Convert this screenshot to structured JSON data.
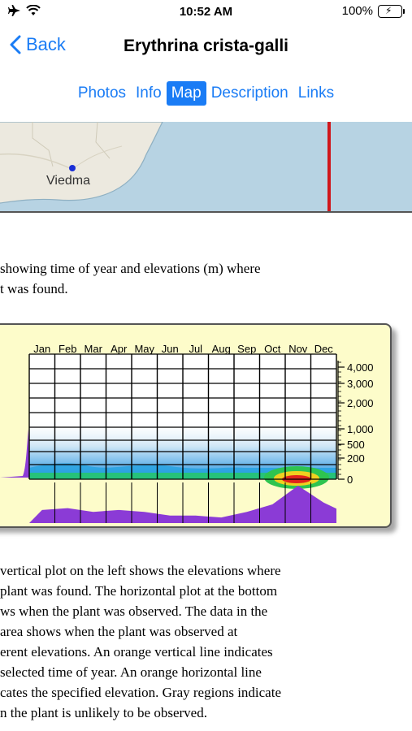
{
  "status": {
    "time": "10:52 AM",
    "battery": "100%"
  },
  "nav": {
    "back_label": "Back",
    "title": "Erythrina crista-galli"
  },
  "tabs": [
    {
      "label": "Photos",
      "active": false
    },
    {
      "label": "Info",
      "active": false
    },
    {
      "label": "Map",
      "active": true
    },
    {
      "label": "Description",
      "active": false
    },
    {
      "label": "Links",
      "active": false
    }
  ],
  "map": {
    "place_label": "Viedma"
  },
  "intro_lines": [
    "showing time of year and elevations (m) where",
    "t was found."
  ],
  "chart_data": {
    "type": "heatmap",
    "months": [
      "Jan",
      "Feb",
      "Mar",
      "Apr",
      "May",
      "Jun",
      "Jul",
      "Aug",
      "Sep",
      "Oct",
      "Nov",
      "Dec"
    ],
    "elevation_ticks": [
      "4,000",
      "3,000",
      "2,000",
      "1,000",
      "500",
      "200",
      "0"
    ],
    "monthly_observations_relative": [
      0.35,
      0.4,
      0.3,
      0.35,
      0.3,
      0.2,
      0.2,
      0.15,
      0.3,
      0.5,
      1.0,
      0.55
    ],
    "xlabel": "",
    "ylabel": ""
  },
  "body_lines": [
    "vertical plot on the left shows the elevations where",
    "plant was found. The horizontal plot at the bottom",
    "ws when the plant was observed. The data in the",
    "area shows when the plant was observed at",
    "erent elevations. An orange vertical line indicates",
    "selected time of year. An orange horizontal line",
    "cates the specified elevation. Gray regions indicate",
    "n the plant is unlikely to be observed."
  ]
}
